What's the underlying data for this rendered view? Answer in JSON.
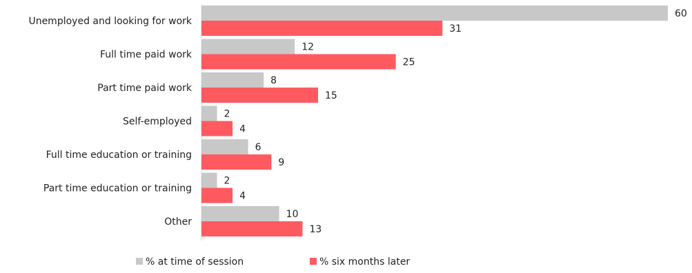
{
  "chart_data": {
    "type": "bar",
    "orientation": "horizontal",
    "categories": [
      "Unemployed and looking for work",
      "Full time paid work",
      "Part time paid work",
      "Self-employed",
      "Full time education or training",
      "Part time education or training",
      "Other"
    ],
    "series": [
      {
        "name": "% at time of session",
        "color": "#c8c8c8",
        "values": [
          60,
          12,
          8,
          2,
          6,
          2,
          10
        ]
      },
      {
        "name": "% six months later",
        "color": "#ff5a5f",
        "values": [
          31,
          25,
          15,
          4,
          9,
          4,
          13
        ]
      }
    ],
    "xlim": [
      0,
      60
    ],
    "grid": false,
    "legend_position": "bottom"
  }
}
